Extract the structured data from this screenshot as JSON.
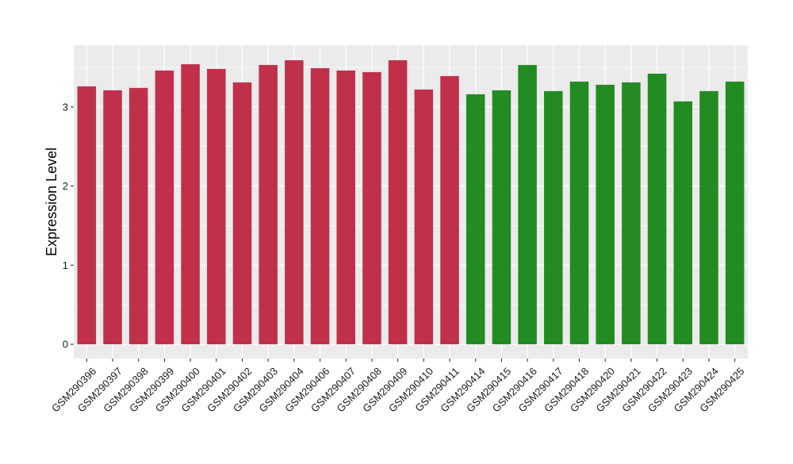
{
  "chart_data": {
    "type": "bar",
    "ylabel": "Expression Level",
    "ylim": [
      -0.18,
      3.78
    ],
    "yticks": [
      0,
      1,
      2,
      3
    ],
    "grid": true,
    "categories": [
      "GSM290396",
      "GSM290397",
      "GSM290398",
      "GSM290399",
      "GSM290400",
      "GSM290401",
      "GSM290402",
      "GSM290403",
      "GSM290404",
      "GSM290406",
      "GSM290407",
      "GSM290408",
      "GSM290409",
      "GSM290410",
      "GSM290411",
      "GSM290414",
      "GSM290415",
      "GSM290416",
      "GSM290417",
      "GSM290418",
      "GSM290420",
      "GSM290421",
      "GSM290422",
      "GSM290423",
      "GSM290424",
      "GSM290425"
    ],
    "values": [
      3.26,
      3.21,
      3.24,
      3.46,
      3.54,
      3.48,
      3.31,
      3.53,
      3.59,
      3.49,
      3.46,
      3.44,
      3.59,
      3.22,
      3.39,
      3.16,
      3.21,
      3.53,
      3.2,
      3.32,
      3.28,
      3.31,
      3.42,
      3.07,
      3.2,
      3.32
    ],
    "bar_colors": [
      "#C0304A",
      "#C0304A",
      "#C0304A",
      "#C0304A",
      "#C0304A",
      "#C0304A",
      "#C0304A",
      "#C0304A",
      "#C0304A",
      "#C0304A",
      "#C0304A",
      "#C0304A",
      "#C0304A",
      "#C0304A",
      "#C0304A",
      "#228B22",
      "#228B22",
      "#228B22",
      "#228B22",
      "#228B22",
      "#228B22",
      "#228B22",
      "#228B22",
      "#228B22",
      "#228B22",
      "#228B22"
    ],
    "panel_background": "#EBEBEB",
    "grid_color": "#FFFFFF"
  }
}
